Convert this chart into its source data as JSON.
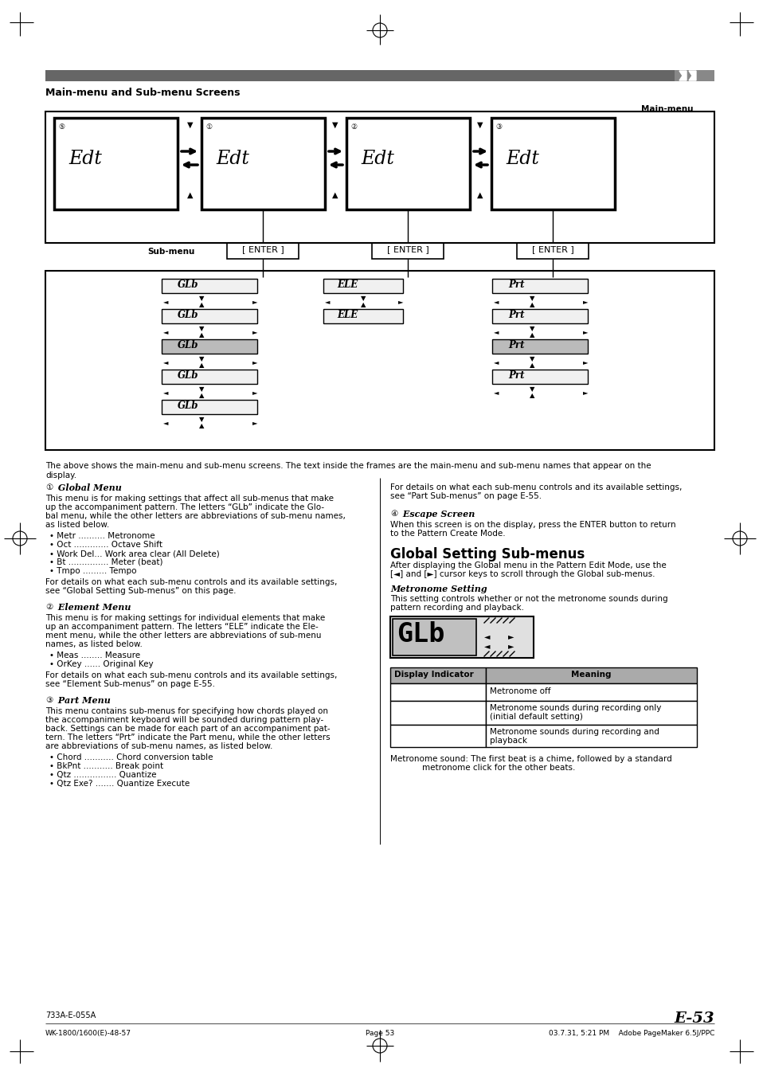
{
  "page_bg": "#ffffff",
  "section_title": "Main-menu and Sub-menu Screens",
  "main_menu_label": "Main-menu",
  "sub_menu_label": "Sub-menu",
  "global_setting_title": "Global Setting Sub-menus",
  "page_number": "E-53",
  "footer_left": "733A-E-055A",
  "footer_bottom_left": "WK-1800/1600(E)-48-57",
  "footer_bottom_center": "Page 53",
  "footer_bottom_right": "03.7.31, 5:21 PM    Adobe PageMaker 6.5J/PPC"
}
